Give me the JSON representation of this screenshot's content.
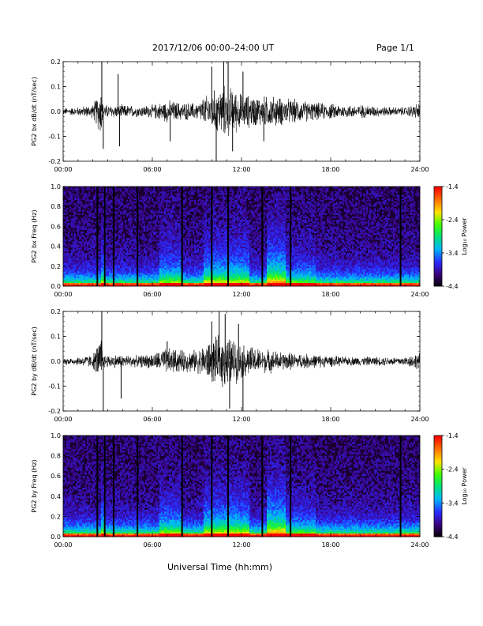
{
  "header": {
    "title": "2017/12/06  00:00–24:00 UT",
    "page": "Page 1/1"
  },
  "footer": {
    "xlabel": "Universal Time (hh:mm)"
  },
  "colors": {
    "trace": "#000000",
    "spectrogram_floor": "#1a0030",
    "colormap": [
      "#000000",
      "#3b007a",
      "#2a2aff",
      "#00b4ff",
      "#00e080",
      "#40ff00",
      "#ffe000",
      "#ff7000",
      "#ff0000"
    ]
  },
  "chart_data": [
    {
      "type": "line",
      "ylabel": "PG2 bx dB/dt (nT/sec)",
      "x_ticks": [
        "00:00",
        "06:00",
        "12:00",
        "18:00",
        "24:00"
      ],
      "xlim_hours": [
        0,
        24
      ],
      "ylim": [
        -0.2,
        0.2
      ],
      "y_ticks": [
        "0.2",
        "0.1",
        "0.0",
        "-0.1",
        "-0.2"
      ],
      "y_tick_values": [
        0.2,
        0.1,
        0.0,
        -0.1,
        -0.2
      ],
      "amplitude_envelope": {
        "hours": [
          0,
          1,
          2,
          2.6,
          2.7,
          3,
          4,
          5,
          6,
          7,
          8,
          9,
          10,
          11,
          12,
          13,
          14,
          15,
          16,
          17,
          18,
          19,
          20,
          21,
          22,
          23,
          24
        ],
        "amp": [
          0.015,
          0.02,
          0.03,
          0.12,
          0.03,
          0.03,
          0.03,
          0.025,
          0.03,
          0.05,
          0.04,
          0.04,
          0.09,
          0.12,
          0.08,
          0.07,
          0.07,
          0.06,
          0.05,
          0.04,
          0.035,
          0.03,
          0.03,
          0.025,
          0.02,
          0.02,
          0.04
        ]
      },
      "spikes": [
        {
          "hour": 2.6,
          "value": 0.2
        },
        {
          "hour": 2.7,
          "value": -0.15
        },
        {
          "hour": 3.8,
          "value": -0.14
        },
        {
          "hour": 3.7,
          "value": 0.15
        },
        {
          "hour": 7.2,
          "value": -0.12
        },
        {
          "hour": 10.0,
          "value": 0.18
        },
        {
          "hour": 10.3,
          "value": -0.2
        },
        {
          "hour": 10.8,
          "value": 0.2
        },
        {
          "hour": 11.1,
          "value": 0.2
        },
        {
          "hour": 11.4,
          "value": -0.16
        },
        {
          "hour": 12.1,
          "value": 0.16
        },
        {
          "hour": 13.5,
          "value": -0.12
        }
      ]
    },
    {
      "type": "heatmap",
      "ylabel": "PG2 bx Freq (Hz)",
      "x_ticks": [
        "00:00",
        "06:00",
        "12:00",
        "18:00",
        "24:00"
      ],
      "xlim_hours": [
        0,
        24
      ],
      "ylim": [
        0,
        1.0
      ],
      "y_ticks": [
        "1.0",
        "0.8",
        "0.6",
        "0.4",
        "0.2",
        "0.0"
      ],
      "y_tick_values": [
        1.0,
        0.8,
        0.6,
        0.4,
        0.2,
        0.0
      ],
      "colorbar_label": "Log₁₀ Power",
      "colorbar_range": [
        -4.4,
        -1.4
      ],
      "colorbar_ticks": [
        "-1.4",
        "-2.4",
        "-3.4",
        "-4.4"
      ],
      "colorbar_tick_values": [
        -1.4,
        -2.4,
        -3.4,
        -4.4
      ],
      "gap_hours": [
        2.3,
        2.8,
        3.4,
        5.0,
        8.0,
        10.0,
        11.1,
        13.4,
        15.3,
        22.7
      ]
    },
    {
      "type": "line",
      "ylabel": "PG2 by dB/dt (nT/sec)",
      "x_ticks": [
        "00:00",
        "06:00",
        "12:00",
        "18:00",
        "24:00"
      ],
      "xlim_hours": [
        0,
        24
      ],
      "ylim": [
        -0.2,
        0.2
      ],
      "y_ticks": [
        "0.2",
        "0.1",
        "0.0",
        "-0.1",
        "-0.2"
      ],
      "y_tick_values": [
        0.2,
        0.1,
        0.0,
        -0.1,
        -0.2
      ],
      "amplitude_envelope": {
        "hours": [
          0,
          1,
          2,
          2.6,
          2.7,
          3,
          4,
          5,
          6,
          7,
          8,
          9,
          10,
          11,
          12,
          13,
          14,
          15,
          16,
          17,
          18,
          19,
          20,
          21,
          22,
          23,
          24
        ],
        "amp": [
          0.015,
          0.02,
          0.03,
          0.12,
          0.03,
          0.03,
          0.03,
          0.025,
          0.035,
          0.06,
          0.05,
          0.05,
          0.1,
          0.12,
          0.08,
          0.06,
          0.05,
          0.04,
          0.035,
          0.03,
          0.025,
          0.02,
          0.02,
          0.02,
          0.02,
          0.02,
          0.04
        ]
      },
      "spikes": [
        {
          "hour": 2.6,
          "value": 0.2
        },
        {
          "hour": 2.7,
          "value": -0.2
        },
        {
          "hour": 3.9,
          "value": -0.15
        },
        {
          "hour": 7.0,
          "value": 0.08
        },
        {
          "hour": 10.0,
          "value": 0.16
        },
        {
          "hour": 10.5,
          "value": 0.2
        },
        {
          "hour": 10.9,
          "value": 0.19
        },
        {
          "hour": 11.2,
          "value": -0.19
        },
        {
          "hour": 12.1,
          "value": -0.2
        },
        {
          "hour": 11.8,
          "value": 0.15
        }
      ]
    },
    {
      "type": "heatmap",
      "ylabel": "PG2 by Freq (Hz)",
      "x_ticks": [
        "00:00",
        "06:00",
        "12:00",
        "18:00",
        "24:00"
      ],
      "xlim_hours": [
        0,
        24
      ],
      "ylim": [
        0,
        1.0
      ],
      "y_ticks": [
        "1.0",
        "0.8",
        "0.6",
        "0.4",
        "0.2",
        "0.0"
      ],
      "y_tick_values": [
        1.0,
        0.8,
        0.6,
        0.4,
        0.2,
        0.0
      ],
      "colorbar_label": "Log₁₀ Power",
      "colorbar_range": [
        -4.4,
        -1.4
      ],
      "colorbar_ticks": [
        "-1.4",
        "-2.4",
        "-3.4",
        "-4.4"
      ],
      "colorbar_tick_values": [
        -1.4,
        -2.4,
        -3.4,
        -4.4
      ],
      "gap_hours": [
        2.3,
        2.8,
        3.4,
        5.0,
        8.0,
        10.0,
        11.1,
        13.4,
        15.3,
        22.7
      ]
    }
  ]
}
